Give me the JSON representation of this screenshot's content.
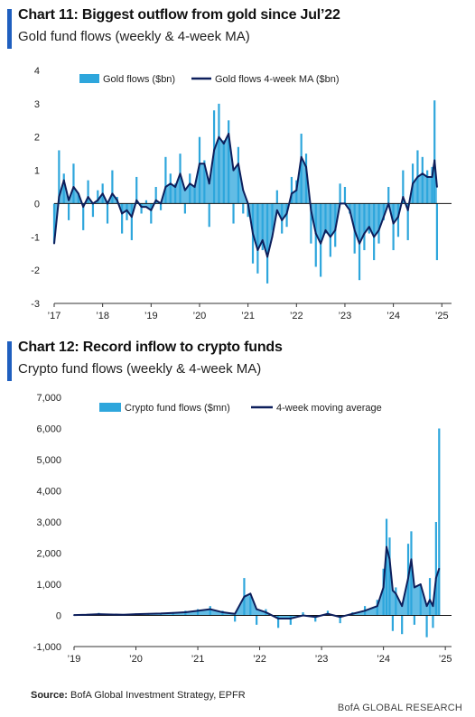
{
  "charts": {
    "gold": {
      "title": "Chart 11: Biggest outflow from gold since Jul’22",
      "subtitle": "Gold fund flows (weekly & 4-week MA)",
      "legend": {
        "bars": "Gold flows ($bn)",
        "line": "Gold flows 4-week MA ($bn)"
      },
      "yticks": [
        "4",
        "3",
        "2",
        "1",
        "0",
        "-1",
        "-2",
        "-3"
      ],
      "xticks": [
        "’17",
        "’18",
        "’19",
        "’20",
        "’21",
        "’22",
        "’23",
        "’24",
        "’25"
      ]
    },
    "crypto": {
      "title": "Chart 12: Record inflow to crypto funds",
      "subtitle": "Crypto fund flows (weekly & 4-week MA)",
      "legend": {
        "bars": "Crypto fund flows ($mn)",
        "line": "4-week moving average"
      },
      "yticks": [
        "7,000",
        "6,000",
        "5,000",
        "4,000",
        "3,000",
        "2,000",
        "1,000",
        "0",
        "-1,000"
      ],
      "xticks": [
        "’19",
        "’20",
        "’21",
        "’22",
        "’23",
        "’24",
        "’25"
      ]
    }
  },
  "source": {
    "label": "Source:",
    "text": "BofA Global Investment Strategy, EPFR"
  },
  "brand": "BofA GLOBAL RESEARCH",
  "colors": {
    "bars": "#2ea6dc",
    "line": "#0d1f5c",
    "accent": "#1f5fbf"
  },
  "chart_data": [
    {
      "type": "bar",
      "title": "Chart 11: Biggest outflow from gold since Jul’22",
      "subtitle": "Gold fund flows (weekly & 4-week MA)",
      "xlabel": "",
      "ylabel": "",
      "ylim": [
        -3,
        4
      ],
      "xlim": [
        2017,
        2025.2
      ],
      "x_ticks": [
        "’17",
        "’18",
        "’19",
        "’20",
        "’21",
        "’22",
        "’23",
        "’24",
        "’25"
      ],
      "series": [
        {
          "name": "Gold flows ($bn)",
          "kind": "bar",
          "x": [
            2017.0,
            2017.1,
            2017.2,
            2017.3,
            2017.4,
            2017.5,
            2017.6,
            2017.7,
            2017.8,
            2017.9,
            2018.0,
            2018.1,
            2018.2,
            2018.3,
            2018.4,
            2018.5,
            2018.6,
            2018.7,
            2018.8,
            2018.9,
            2019.0,
            2019.1,
            2019.2,
            2019.3,
            2019.4,
            2019.5,
            2019.6,
            2019.7,
            2019.8,
            2019.9,
            2020.0,
            2020.1,
            2020.2,
            2020.3,
            2020.4,
            2020.5,
            2020.6,
            2020.7,
            2020.8,
            2020.9,
            2021.0,
            2021.1,
            2021.2,
            2021.3,
            2021.4,
            2021.5,
            2021.6,
            2021.7,
            2021.8,
            2021.9,
            2022.0,
            2022.1,
            2022.2,
            2022.3,
            2022.4,
            2022.5,
            2022.6,
            2022.7,
            2022.8,
            2022.9,
            2023.0,
            2023.1,
            2023.2,
            2023.3,
            2023.4,
            2023.5,
            2023.6,
            2023.7,
            2023.8,
            2023.9,
            2024.0,
            2024.1,
            2024.2,
            2024.3,
            2024.4,
            2024.5,
            2024.6,
            2024.7,
            2024.8,
            2024.85,
            2024.9
          ],
          "y": [
            -1.2,
            1.6,
            0.9,
            -0.5,
            1.2,
            0.3,
            -0.8,
            0.7,
            -0.4,
            0.4,
            0.6,
            -0.6,
            1.0,
            0.2,
            -0.9,
            -0.5,
            -1.1,
            0.8,
            -0.3,
            0.1,
            -0.6,
            0.5,
            -0.2,
            1.4,
            0.9,
            0.6,
            1.5,
            -0.3,
            0.9,
            0.5,
            2.0,
            1.3,
            -0.7,
            2.8,
            3.0,
            1.9,
            2.5,
            -0.6,
            1.7,
            -0.3,
            -0.4,
            -1.8,
            -2.1,
            -1.4,
            -2.4,
            -0.8,
            0.4,
            -0.9,
            -0.7,
            0.8,
            0.7,
            2.1,
            1.5,
            -1.2,
            -1.9,
            -2.2,
            -0.9,
            -1.6,
            -1.3,
            0.6,
            0.5,
            -0.3,
            -1.5,
            -2.3,
            -1.4,
            -0.9,
            -1.7,
            -1.2,
            -0.5,
            0.5,
            -1.4,
            -1.0,
            1.0,
            -1.1,
            1.2,
            1.6,
            1.4,
            1.0,
            1.1,
            3.1,
            -1.7
          ]
        },
        {
          "name": "Gold flows 4-week MA ($bn)",
          "kind": "line",
          "x": [
            2017.0,
            2017.1,
            2017.2,
            2017.3,
            2017.4,
            2017.5,
            2017.6,
            2017.7,
            2017.8,
            2017.9,
            2018.0,
            2018.1,
            2018.2,
            2018.3,
            2018.4,
            2018.5,
            2018.6,
            2018.7,
            2018.8,
            2018.9,
            2019.0,
            2019.1,
            2019.2,
            2019.3,
            2019.4,
            2019.5,
            2019.6,
            2019.7,
            2019.8,
            2019.9,
            2020.0,
            2020.1,
            2020.2,
            2020.3,
            2020.4,
            2020.5,
            2020.6,
            2020.7,
            2020.8,
            2020.9,
            2021.0,
            2021.1,
            2021.2,
            2021.3,
            2021.4,
            2021.5,
            2021.6,
            2021.7,
            2021.8,
            2021.9,
            2022.0,
            2022.1,
            2022.2,
            2022.3,
            2022.4,
            2022.5,
            2022.6,
            2022.7,
            2022.8,
            2022.9,
            2023.0,
            2023.1,
            2023.2,
            2023.3,
            2023.4,
            2023.5,
            2023.6,
            2023.7,
            2023.8,
            2023.9,
            2024.0,
            2024.1,
            2024.2,
            2024.3,
            2024.4,
            2024.5,
            2024.6,
            2024.7,
            2024.8,
            2024.85,
            2024.9
          ],
          "y": [
            -1.2,
            0.2,
            0.7,
            0.1,
            0.5,
            0.3,
            -0.1,
            0.2,
            0.0,
            0.1,
            0.3,
            0.0,
            0.3,
            0.1,
            -0.3,
            -0.2,
            -0.4,
            0.1,
            -0.1,
            -0.1,
            -0.2,
            0.1,
            0.0,
            0.5,
            0.6,
            0.5,
            0.9,
            0.4,
            0.6,
            0.5,
            1.2,
            1.2,
            0.6,
            1.6,
            2.0,
            1.8,
            2.1,
            1.0,
            1.2,
            0.4,
            0.0,
            -0.9,
            -1.4,
            -1.1,
            -1.6,
            -1.0,
            -0.2,
            -0.5,
            -0.3,
            0.3,
            0.4,
            1.4,
            1.1,
            -0.2,
            -0.9,
            -1.2,
            -0.8,
            -1.0,
            -0.8,
            0.0,
            0.0,
            -0.2,
            -0.8,
            -1.2,
            -0.9,
            -0.7,
            -1.0,
            -0.8,
            -0.4,
            0.0,
            -0.6,
            -0.4,
            0.2,
            -0.2,
            0.6,
            0.8,
            0.9,
            0.8,
            0.8,
            1.3,
            0.5
          ]
        }
      ]
    },
    {
      "type": "bar",
      "title": "Chart 12: Record inflow to crypto funds",
      "subtitle": "Crypto fund flows (weekly & 4-week MA)",
      "xlabel": "",
      "ylabel": "",
      "ylim": [
        -1000,
        7000
      ],
      "xlim": [
        2019,
        2025.1
      ],
      "x_ticks": [
        "’19",
        "’20",
        "’21",
        "’22",
        "’23",
        "’24",
        "’25"
      ],
      "series": [
        {
          "name": "Crypto fund flows ($mn)",
          "kind": "bar",
          "x": [
            2019.0,
            2019.2,
            2019.4,
            2019.6,
            2019.8,
            2020.0,
            2020.2,
            2020.4,
            2020.6,
            2020.8,
            2021.0,
            2021.2,
            2021.4,
            2021.6,
            2021.75,
            2021.85,
            2021.95,
            2022.1,
            2022.3,
            2022.5,
            2022.7,
            2022.9,
            2023.1,
            2023.3,
            2023.5,
            2023.7,
            2023.9,
            2024.0,
            2024.05,
            2024.1,
            2024.15,
            2024.2,
            2024.3,
            2024.4,
            2024.45,
            2024.5,
            2024.6,
            2024.7,
            2024.75,
            2024.8,
            2024.85,
            2024.9
          ],
          "y": [
            20,
            30,
            80,
            40,
            20,
            50,
            60,
            80,
            100,
            150,
            200,
            300,
            150,
            -200,
            1200,
            600,
            -300,
            200,
            -400,
            -300,
            100,
            -200,
            150,
            -250,
            100,
            300,
            500,
            1500,
            3100,
            2500,
            -500,
            900,
            -600,
            2300,
            2700,
            -300,
            1000,
            -700,
            1200,
            -400,
            3000,
            6000
          ]
        },
        {
          "name": "4-week moving average",
          "kind": "line",
          "x": [
            2019.0,
            2019.2,
            2019.4,
            2019.6,
            2019.8,
            2020.0,
            2020.2,
            2020.4,
            2020.6,
            2020.8,
            2021.0,
            2021.2,
            2021.4,
            2021.6,
            2021.75,
            2021.85,
            2021.95,
            2022.1,
            2022.3,
            2022.5,
            2022.7,
            2022.9,
            2023.1,
            2023.3,
            2023.5,
            2023.7,
            2023.9,
            2024.0,
            2024.05,
            2024.1,
            2024.15,
            2024.2,
            2024.3,
            2024.4,
            2024.45,
            2024.5,
            2024.6,
            2024.7,
            2024.75,
            2024.8,
            2024.85,
            2024.9
          ],
          "y": [
            10,
            20,
            40,
            30,
            20,
            40,
            50,
            60,
            80,
            100,
            150,
            200,
            100,
            50,
            600,
            700,
            200,
            100,
            -100,
            -100,
            0,
            -50,
            50,
            -50,
            50,
            150,
            300,
            900,
            2200,
            1800,
            800,
            700,
            300,
            1200,
            1800,
            900,
            1000,
            300,
            500,
            300,
            1200,
            1500
          ]
        }
      ]
    }
  ]
}
